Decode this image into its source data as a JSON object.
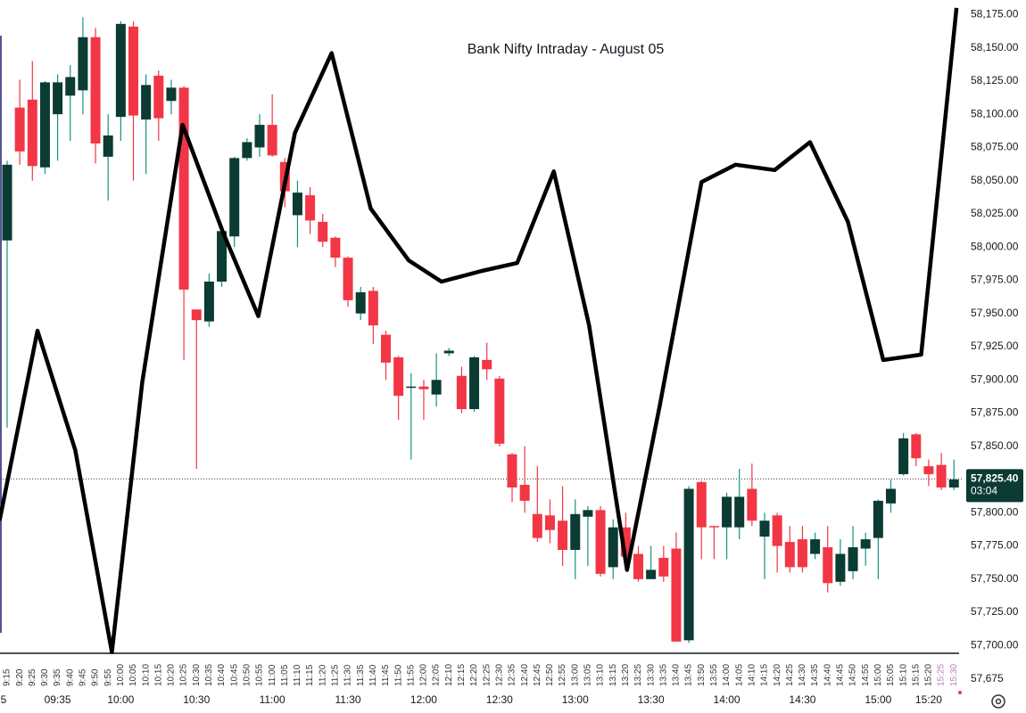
{
  "chart_data": {
    "type": "candlestick",
    "title": "Bank Nifty Intraday - August 05",
    "categories": [
      "9:15",
      "9:20",
      "9:25",
      "9:30",
      "9:35",
      "9:40",
      "9:45",
      "9:50",
      "9:55",
      "10:00",
      "10:05",
      "10:10",
      "10:15",
      "10:20",
      "10:25",
      "10:30",
      "10:35",
      "10:40",
      "10:45",
      "10:50",
      "10:55",
      "11:00",
      "11:05",
      "11:10",
      "11:15",
      "11:20",
      "11:25",
      "11:30",
      "11:35",
      "11:40",
      "11:45",
      "11:50",
      "11:55",
      "12:00",
      "12:05",
      "12:10",
      "12:15",
      "12:20",
      "12:25",
      "12:30",
      "12:35",
      "12:40",
      "12:45",
      "12:50",
      "12:55",
      "13:00",
      "13:05",
      "13:10",
      "13:15",
      "13:20",
      "13:25",
      "13:30",
      "13:35",
      "13:40",
      "13:45",
      "13:50",
      "13:55",
      "14:00",
      "14:05",
      "14:10",
      "14:15",
      "14:20",
      "14:25",
      "14:30",
      "14:35",
      "14:40",
      "14:45",
      "14:50",
      "14:55",
      "15:00",
      "15:05",
      "15:10",
      "15:15",
      "15:20",
      "15:25",
      "15:30"
    ],
    "time_labels": [
      "5",
      null,
      null,
      null,
      "09:35",
      null,
      null,
      null,
      null,
      "10:00",
      null,
      null,
      null,
      null,
      null,
      "10:30",
      null,
      null,
      null,
      null,
      null,
      "11:00",
      null,
      null,
      null,
      null,
      null,
      "11:30",
      null,
      null,
      null,
      null,
      null,
      "12:00",
      null,
      null,
      null,
      null,
      null,
      "12:30",
      null,
      null,
      null,
      null,
      null,
      "13:00",
      null,
      null,
      null,
      null,
      null,
      "13:30",
      null,
      null,
      null,
      null,
      null,
      "14:00",
      null,
      null,
      null,
      null,
      null,
      "14:30",
      null,
      null,
      null,
      null,
      null,
      "15:00",
      null,
      null,
      null,
      "15:20",
      null,
      null
    ],
    "open": [
      58005,
      58105,
      58111,
      58060,
      58100,
      58114,
      58118,
      58158,
      58068,
      58098,
      58166,
      58096,
      58129,
      58110,
      58120,
      57953,
      57944,
      57974,
      58008,
      58067,
      58075,
      58092,
      58064,
      58024,
      58039,
      58019,
      58007,
      57992,
      57950,
      57967,
      57934,
      57917,
      57894,
      57895,
      57889,
      57920,
      57903,
      57878,
      57915,
      57901,
      57844,
      57821,
      57799,
      57798,
      57794,
      57772,
      57797,
      57802,
      57759,
      57789,
      57769,
      57750,
      57766,
      57773,
      57704,
      57823,
      57790,
      57789,
      57789,
      57818,
      57782,
      57798,
      57778,
      57780,
      57769,
      57774,
      57748,
      57756,
      57773,
      57781,
      57807,
      57829,
      57859,
      57835,
      57836,
      57819
    ],
    "high": [
      58065,
      58126,
      58140,
      58125,
      58130,
      58137,
      58173,
      58165,
      58100,
      58170,
      58170,
      58130,
      58133,
      58126,
      58121,
      57953,
      57980,
      58015,
      58068,
      58082,
      58100,
      58115,
      58067,
      58050,
      58045,
      58025,
      58008,
      57993,
      57970,
      57970,
      57937,
      57918,
      57905,
      57900,
      57920,
      57924,
      57910,
      57918,
      57928,
      57903,
      57845,
      57850,
      57835,
      57810,
      57820,
      57810,
      57805,
      57805,
      57795,
      57800,
      57775,
      57775,
      57775,
      57785,
      57820,
      57824,
      57790,
      57815,
      57833,
      57837,
      57800,
      57800,
      57790,
      57790,
      57785,
      57790,
      57780,
      57790,
      57785,
      57810,
      57825,
      57860,
      57860,
      57840,
      57845,
      57840
    ],
    "low": [
      57864,
      58062,
      58050,
      58055,
      58065,
      58080,
      58100,
      58063,
      58035,
      58080,
      58050,
      58055,
      58080,
      58100,
      57915,
      57833,
      57940,
      57970,
      58000,
      58065,
      58068,
      58068,
      58030,
      58000,
      58010,
      58000,
      57985,
      57955,
      57945,
      57927,
      57900,
      57870,
      57840,
      57870,
      57880,
      57918,
      57875,
      57876,
      57900,
      57850,
      57808,
      57800,
      57778,
      57777,
      57760,
      57750,
      57760,
      57752,
      57750,
      57760,
      57748,
      57750,
      57748,
      57703,
      57702,
      57765,
      57765,
      57765,
      57780,
      57790,
      57750,
      57755,
      57755,
      57755,
      57765,
      57740,
      57745,
      57750,
      57760,
      57750,
      57800,
      57828,
      57835,
      57820,
      57817,
      57817
    ],
    "close": [
      58062,
      58072,
      58061,
      58124,
      58124,
      58128,
      58158,
      58078,
      58084,
      58168,
      58099,
      58122,
      58097,
      58120,
      57968,
      57945,
      57974,
      58012,
      58067,
      58079,
      58092,
      58069,
      58042,
      58041,
      58020,
      58004,
      57992,
      57960,
      57966,
      57941,
      57913,
      57888,
      57895,
      57893,
      57900,
      57922,
      57878,
      57917,
      57908,
      57852,
      57819,
      57809,
      57781,
      57787,
      57772,
      57799,
      57802,
      57754,
      57789,
      57767,
      57750,
      57757,
      57752,
      57703,
      57818,
      57789,
      57789,
      57812,
      57812,
      57794,
      57794,
      57775,
      57759,
      57759,
      57780,
      57747,
      57769,
      57774,
      57780,
      57809,
      57818,
      57856,
      57841,
      57829,
      57819,
      57825
    ],
    "up_color": "#0b3b33",
    "down_color": "#f23645",
    "up_wick_color": "#12947d",
    "overlay": {
      "type": "line",
      "color": "#000000",
      "x": [
        -0.6,
        2.4,
        5.4,
        8.3,
        10.7,
        13.9,
        17.1,
        19.9,
        22.8,
        25.7,
        28.8,
        31.8,
        34.4,
        37.6,
        40.4,
        43.3,
        46.1,
        49.1,
        51.7,
        55,
        57.7,
        60.8,
        63.6,
        66.6,
        69.4,
        72.4,
        75.2
      ],
      "values": [
        57794,
        57937,
        57847,
        57695,
        57898,
        58092,
        58011,
        57948,
        58086,
        58146,
        58029,
        57990,
        57974,
        57982,
        57988,
        58057,
        57941,
        57757,
        57881,
        58049,
        58062,
        58058,
        58079,
        58019,
        57915,
        57919,
        58180
      ]
    },
    "last_price": {
      "value": 57825.4,
      "label": "57,825.40"
    },
    "countdown": "03:04",
    "ylim": [
      57666,
      58186
    ],
    "yticks": [
      {
        "value": 57675,
        "label": "57,675"
      },
      {
        "value": 57700,
        "label": "57,700.00"
      },
      {
        "value": 57725,
        "label": "57,725.00"
      },
      {
        "value": 57750,
        "label": "57,750.00"
      },
      {
        "value": 57775,
        "label": "57,775.00"
      },
      {
        "value": 57800,
        "label": "57,800.00"
      },
      {
        "value": 57825,
        "label": "57,825.00"
      },
      {
        "value": 57850,
        "label": "57,850.00"
      },
      {
        "value": 57875,
        "label": "57,875.00"
      },
      {
        "value": 57900,
        "label": "57,900.00"
      },
      {
        "value": 57925,
        "label": "57,925.00"
      },
      {
        "value": 57950,
        "label": "57,950.00"
      },
      {
        "value": 57975,
        "label": "57,975.00"
      },
      {
        "value": 58000,
        "label": "58,000.00"
      },
      {
        "value": 58025,
        "label": "58,025.00"
      },
      {
        "value": 58050,
        "label": "58,050.00"
      },
      {
        "value": 58075,
        "label": "58,075.00"
      },
      {
        "value": 58100,
        "label": "58,100.00"
      },
      {
        "value": 58125,
        "label": "58,125.00"
      },
      {
        "value": 58150,
        "label": "58,150.00"
      },
      {
        "value": 58175,
        "label": "58,175.00"
      }
    ]
  }
}
